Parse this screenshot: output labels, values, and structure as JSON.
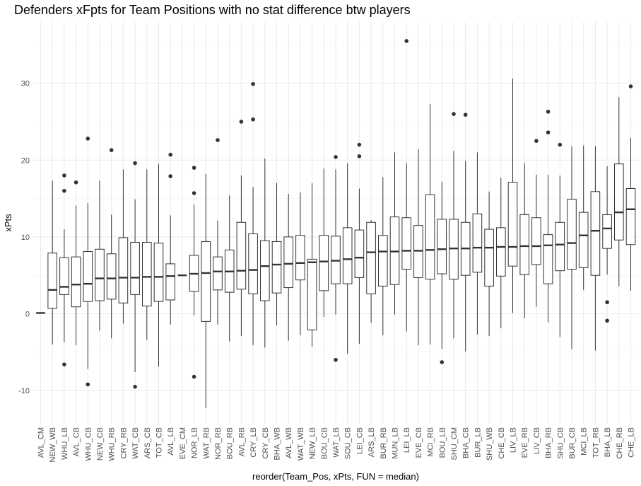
{
  "chart_data": {
    "type": "boxplot",
    "title": "Defenders xFpts for Team Positions with no stat difference btw players",
    "xlabel": "reorder(Team_Pos, xPts, FUN = median)",
    "ylabel": "xPts",
    "ylim": [
      -14.5,
      37.5
    ],
    "yticks": [
      -10,
      0,
      10,
      20,
      30
    ],
    "grid": true,
    "boxes": [
      {
        "category": "AVL_CM",
        "lower_whisker": 0.1,
        "q1": 0.1,
        "median": 0.1,
        "q3": 0.1,
        "upper_whisker": 0.1,
        "outliers": []
      },
      {
        "category": "NEW_WB",
        "lower_whisker": -4.0,
        "q1": 0.7,
        "median": 3.1,
        "q3": 7.9,
        "upper_whisker": 17.3,
        "outliers": []
      },
      {
        "category": "WHU_LB",
        "lower_whisker": -3.7,
        "q1": 2.5,
        "median": 3.5,
        "q3": 7.3,
        "upper_whisker": 11.0,
        "outliers": [
          18.0,
          16.0,
          -6.6
        ]
      },
      {
        "category": "AVL_CB",
        "lower_whisker": -4.1,
        "q1": 0.9,
        "median": 3.8,
        "q3": 7.4,
        "upper_whisker": 14.1,
        "outliers": [
          17.1
        ]
      },
      {
        "category": "WHU_CB",
        "lower_whisker": -7.2,
        "q1": 1.6,
        "median": 3.9,
        "q3": 8.1,
        "upper_whisker": 14.4,
        "outliers": [
          22.8,
          -9.2
        ]
      },
      {
        "category": "NEW_CB",
        "lower_whisker": -2.2,
        "q1": 1.7,
        "median": 4.6,
        "q3": 8.4,
        "upper_whisker": 17.3,
        "outliers": []
      },
      {
        "category": "WHU_RB",
        "lower_whisker": -3.2,
        "q1": 1.9,
        "median": 4.6,
        "q3": 7.8,
        "upper_whisker": 12.9,
        "outliers": [
          21.3
        ]
      },
      {
        "category": "CRY_RB",
        "lower_whisker": -1.3,
        "q1": 1.4,
        "median": 4.7,
        "q3": 9.9,
        "upper_whisker": 18.8,
        "outliers": []
      },
      {
        "category": "WAT_CB",
        "lower_whisker": -7.6,
        "q1": 2.5,
        "median": 4.7,
        "q3": 9.3,
        "upper_whisker": 14.9,
        "outliers": [
          19.6,
          -9.5
        ]
      },
      {
        "category": "ARS_CB",
        "lower_whisker": -3.4,
        "q1": 1.0,
        "median": 4.8,
        "q3": 9.3,
        "upper_whisker": 18.8,
        "outliers": []
      },
      {
        "category": "TOT_CB",
        "lower_whisker": -6.9,
        "q1": 1.6,
        "median": 4.8,
        "q3": 9.2,
        "upper_whisker": 19.5,
        "outliers": []
      },
      {
        "category": "AVL_LB",
        "lower_whisker": -1.4,
        "q1": 1.8,
        "median": 4.9,
        "q3": 6.5,
        "upper_whisker": 12.8,
        "outliers": [
          20.7,
          17.9
        ]
      },
      {
        "category": "EVE_CM",
        "lower_whisker": 5.0,
        "q1": 5.0,
        "median": 5.0,
        "q3": 5.0,
        "upper_whisker": 5.0,
        "outliers": []
      },
      {
        "category": "NOR_LB",
        "lower_whisker": -0.2,
        "q1": 2.9,
        "median": 5.2,
        "q3": 7.6,
        "upper_whisker": 14.2,
        "outliers": [
          19.0,
          15.7,
          -8.2
        ]
      },
      {
        "category": "WAT_RB",
        "lower_whisker": -12.3,
        "q1": -1.0,
        "median": 5.3,
        "q3": 9.4,
        "upper_whisker": 18.2,
        "outliers": []
      },
      {
        "category": "NOR_RB",
        "lower_whisker": -1.4,
        "q1": 3.1,
        "median": 5.5,
        "q3": 7.4,
        "upper_whisker": 12.1,
        "outliers": [
          22.6
        ]
      },
      {
        "category": "BOU_RB",
        "lower_whisker": -3.6,
        "q1": 2.8,
        "median": 5.5,
        "q3": 8.3,
        "upper_whisker": 15.4,
        "outliers": []
      },
      {
        "category": "AVL_RB",
        "lower_whisker": -2.9,
        "q1": 3.2,
        "median": 5.6,
        "q3": 11.9,
        "upper_whisker": 18.0,
        "outliers": [
          25.0
        ]
      },
      {
        "category": "CRY_LB",
        "lower_whisker": -4.1,
        "q1": 2.6,
        "median": 5.7,
        "q3": 10.4,
        "upper_whisker": 16.5,
        "outliers": [
          29.9,
          25.3
        ]
      },
      {
        "category": "CRY_CB",
        "lower_whisker": -4.4,
        "q1": 1.7,
        "median": 6.2,
        "q3": 9.5,
        "upper_whisker": 20.2,
        "outliers": []
      },
      {
        "category": "BHA_WB",
        "lower_whisker": -1.5,
        "q1": 2.7,
        "median": 6.4,
        "q3": 9.4,
        "upper_whisker": 17.0,
        "outliers": []
      },
      {
        "category": "AVL_WB",
        "lower_whisker": -3.5,
        "q1": 3.4,
        "median": 6.5,
        "q3": 10.0,
        "upper_whisker": 15.6,
        "outliers": []
      },
      {
        "category": "WAT_WB",
        "lower_whisker": -2.8,
        "q1": 4.4,
        "median": 6.6,
        "q3": 10.2,
        "upper_whisker": 15.8,
        "outliers": []
      },
      {
        "category": "NEW_LB",
        "lower_whisker": -4.3,
        "q1": -2.1,
        "median": 6.7,
        "q3": 7.1,
        "upper_whisker": 17.0,
        "outliers": []
      },
      {
        "category": "BOU_CB",
        "lower_whisker": -0.4,
        "q1": 3.0,
        "median": 6.8,
        "q3": 10.2,
        "upper_whisker": 18.9,
        "outliers": []
      },
      {
        "category": "WAT_LB",
        "lower_whisker": -0.1,
        "q1": 3.9,
        "median": 6.9,
        "q3": 10.1,
        "upper_whisker": 18.8,
        "outliers": [
          20.4,
          -6.0
        ]
      },
      {
        "category": "SOU_CB",
        "lower_whisker": -5.2,
        "q1": 3.9,
        "median": 7.1,
        "q3": 11.2,
        "upper_whisker": 19.6,
        "outliers": []
      },
      {
        "category": "LEI_CB",
        "lower_whisker": -3.9,
        "q1": 4.7,
        "median": 7.3,
        "q3": 10.9,
        "upper_whisker": 16.3,
        "outliers": [
          22.0,
          20.5
        ]
      },
      {
        "category": "ARS_LB",
        "lower_whisker": -1.2,
        "q1": 2.6,
        "median": 8.0,
        "q3": 11.9,
        "upper_whisker": 12.2,
        "outliers": []
      },
      {
        "category": "BUR_RB",
        "lower_whisker": -2.8,
        "q1": 3.6,
        "median": 8.1,
        "q3": 10.2,
        "upper_whisker": 17.8,
        "outliers": []
      },
      {
        "category": "MUN_LB",
        "lower_whisker": -0.1,
        "q1": 3.8,
        "median": 8.1,
        "q3": 12.6,
        "upper_whisker": 21.0,
        "outliers": []
      },
      {
        "category": "LEI_LB",
        "lower_whisker": -2.3,
        "q1": 5.8,
        "median": 8.2,
        "q3": 12.5,
        "upper_whisker": 19.6,
        "outliers": [
          35.5
        ]
      },
      {
        "category": "EVE_CB",
        "lower_whisker": -4.1,
        "q1": 4.7,
        "median": 8.2,
        "q3": 11.5,
        "upper_whisker": 21.4,
        "outliers": []
      },
      {
        "category": "MCI_RB",
        "lower_whisker": -4.0,
        "q1": 4.5,
        "median": 8.3,
        "q3": 15.5,
        "upper_whisker": 27.3,
        "outliers": []
      },
      {
        "category": "BOU_LB",
        "lower_whisker": -4.6,
        "q1": 5.2,
        "median": 8.4,
        "q3": 12.3,
        "upper_whisker": 17.2,
        "outliers": [
          -6.3
        ]
      },
      {
        "category": "SHU_CM",
        "lower_whisker": -3.2,
        "q1": 4.5,
        "median": 8.5,
        "q3": 12.3,
        "upper_whisker": 21.2,
        "outliers": [
          26.0
        ]
      },
      {
        "category": "BHA_CB",
        "lower_whisker": -4.9,
        "q1": 5.0,
        "median": 8.5,
        "q3": 11.9,
        "upper_whisker": 19.9,
        "outliers": [
          25.9
        ]
      },
      {
        "category": "BUR_LB",
        "lower_whisker": -2.7,
        "q1": 5.4,
        "median": 8.6,
        "q3": 13.0,
        "upper_whisker": 21.0,
        "outliers": []
      },
      {
        "category": "SHU_WB",
        "lower_whisker": -2.9,
        "q1": 3.6,
        "median": 8.6,
        "q3": 11.0,
        "upper_whisker": 15.9,
        "outliers": []
      },
      {
        "category": "CHE_CB",
        "lower_whisker": -1.9,
        "q1": 4.9,
        "median": 8.7,
        "q3": 11.2,
        "upper_whisker": 17.7,
        "outliers": []
      },
      {
        "category": "LIV_LB",
        "lower_whisker": 0.1,
        "q1": 6.2,
        "median": 8.7,
        "q3": 17.1,
        "upper_whisker": 30.6,
        "outliers": []
      },
      {
        "category": "EVE_RB",
        "lower_whisker": -0.6,
        "q1": 5.1,
        "median": 8.8,
        "q3": 12.9,
        "upper_whisker": 19.6,
        "outliers": []
      },
      {
        "category": "LIV_CB",
        "lower_whisker": 0.9,
        "q1": 6.4,
        "median": 8.8,
        "q3": 12.5,
        "upper_whisker": 18.1,
        "outliers": [
          22.5
        ]
      },
      {
        "category": "BHA_RB",
        "lower_whisker": -1.1,
        "q1": 3.9,
        "median": 8.9,
        "q3": 10.3,
        "upper_whisker": 18.1,
        "outliers": [
          26.3,
          23.6
        ]
      },
      {
        "category": "SHU_CB",
        "lower_whisker": -3.0,
        "q1": 5.6,
        "median": 9.0,
        "q3": 11.9,
        "upper_whisker": 18.0,
        "outliers": [
          22.0
        ]
      },
      {
        "category": "BUR_CB",
        "lower_whisker": -4.6,
        "q1": 5.8,
        "median": 9.2,
        "q3": 14.9,
        "upper_whisker": 21.8,
        "outliers": []
      },
      {
        "category": "MCI_LB",
        "lower_whisker": 3.1,
        "q1": 6.0,
        "median": 10.2,
        "q3": 13.2,
        "upper_whisker": 21.9,
        "outliers": []
      },
      {
        "category": "TOT_RB",
        "lower_whisker": -4.8,
        "q1": 5.0,
        "median": 10.8,
        "q3": 15.9,
        "upper_whisker": 21.8,
        "outliers": []
      },
      {
        "category": "BHA_LB",
        "lower_whisker": 5.1,
        "q1": 8.5,
        "median": 11.1,
        "q3": 12.9,
        "upper_whisker": 19.2,
        "outliers": [
          1.5,
          -0.9
        ]
      },
      {
        "category": "CHE_RB",
        "lower_whisker": 3.6,
        "q1": 9.6,
        "median": 13.2,
        "q3": 19.5,
        "upper_whisker": 28.2,
        "outliers": []
      },
      {
        "category": "CHE_LB",
        "lower_whisker": 3.0,
        "q1": 9.0,
        "median": 13.6,
        "q3": 16.3,
        "upper_whisker": 22.9,
        "outliers": [
          29.6
        ]
      }
    ]
  }
}
